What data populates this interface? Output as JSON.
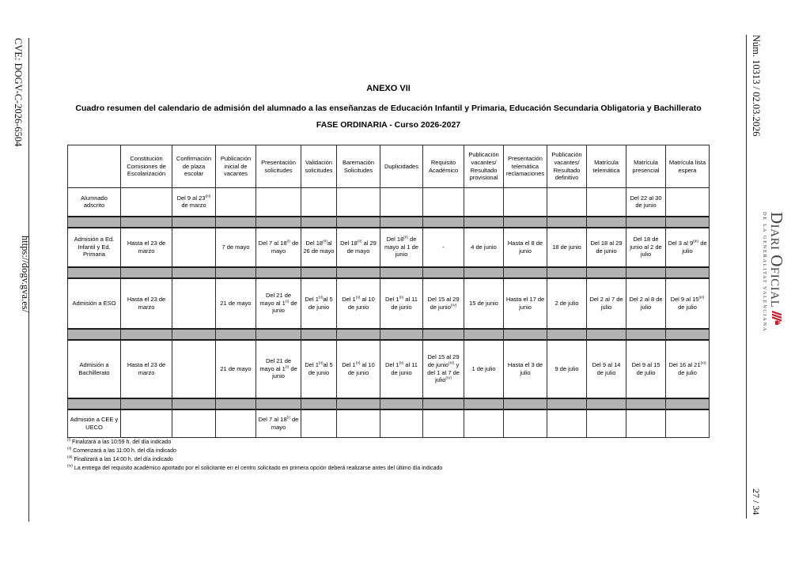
{
  "colors": {
    "logo_red": "#c41e2f",
    "spacer_gray": "#b3b3b3",
    "rule": "#2a2a2a"
  },
  "left_sidebar": {
    "cve": "CVE: DOGV-C-2026-6504",
    "url": "https://dogv.gva.es/"
  },
  "right_sidebar": {
    "issue": "Núm. 10313 / 02.03.2026",
    "logo_title": "Diari Oficial",
    "logo_subtitle": "DE LA GENERALITAT VALENCIANA",
    "page_number": "27 / 34"
  },
  "header": {
    "annex": "ANEXO VII",
    "subtitle": "Cuadro resumen del calendario de admisión del alumnado a las enseñanzas de Educación Infantil y Primaria, Educación Secundaria Obligatoria y Bachillerato",
    "phase": "FASE ORDINARIA - Curso 2026-2027"
  },
  "table": {
    "columns": [
      "",
      "Constitución Comisiones de Escolarización",
      "Confirmación de plaza escolar",
      "Publicación inicial de vacantes",
      "Presentación solicitudes",
      "Validación solicitudes",
      "Baremación Solicitudes",
      "Duplicidades",
      "Requisito Académico",
      "Publicación vacantes/ Resultado provisional",
      "Presentación telemática reclamaciones",
      "Publicación vacantes/ Resultado definitivo",
      "Matrícula telemática",
      "Matrícula presencial",
      "Matrícula lista espera"
    ],
    "rows": [
      {
        "label": "Alumnado adscrito",
        "cells": [
          "",
          "Del 9 al 23^(III) de marzo",
          "",
          "",
          "",
          "",
          "",
          "",
          "",
          "",
          "",
          "",
          "Del 22 al 30 de junio",
          ""
        ]
      },
      {
        "spacer": true
      },
      {
        "label": "Admisión a Ed. Infantil y Ed. Primaria",
        "cells": [
          "Hasta el 23 de marzo",
          "",
          "7 de mayo",
          "Del 7 al 18^(I) de mayo",
          "Del 18^(II)al 26 de mayo",
          "Del 18^(II) al 29 de mayo",
          "Del 18^(II) de mayo al 1 de junio",
          "-",
          "4 de junio",
          "Hasta el 8 de junio",
          "18 de junio",
          "Del 18 al 29 de junio",
          "Del 18 de junio al 2 de julio",
          "Del 3 al 9^(III) de julio"
        ]
      },
      {
        "spacer": true
      },
      {
        "label": "Admisión a ESO",
        "cells": [
          "Hasta el 23 de marzo",
          "",
          "21 de mayo",
          "Del 21 de mayo al 1^(I) de junio",
          "Del 1^(II)al 5 de junio",
          "Del 1^(II) al 10 de junio",
          "Del 1^(II) al 11 de junio",
          "Del 15 al 29 de junio^(IV)",
          "15 de junio",
          "Hasta el 17 de junio",
          "2 de julio",
          "Del 2 al 7 de julio",
          "Del 2 al 8 de julio",
          "Del 9 al 15^(III) de julio"
        ]
      },
      {
        "spacer": true
      },
      {
        "label": "Admisión a Bachillerato",
        "cells": [
          "Hasta el 23 de marzo",
          "",
          "21 de mayo",
          "Del 21 de mayo al 1^(I) de junio",
          "Del 1^(II)al 5 de junio",
          "Del 1^(II) al 10 de junio",
          "Del 1^(II) al 11 de junio",
          "Del 15 al 29 de junio^(IV) y del 1 al 7 de julio^(IV)",
          "1 de julio",
          "Hasta el 3 de julio",
          "9 de julio",
          "Del 9 al 14 de julio",
          "Del 9 al 15 de julio",
          "Del 16 al 21^(III) de julio"
        ]
      },
      {
        "spacer": true
      },
      {
        "label": "Admisión a CEE y UECO",
        "cells": [
          "",
          "",
          "",
          "Del 7 al 18^(I) de mayo",
          "",
          "",
          "",
          "",
          "",
          "",
          "",
          "",
          "",
          ""
        ]
      }
    ]
  },
  "footnotes": [
    "^(I) Finalizará a las 10:59 h. del día indicado",
    "^(II) Comenzará a las 11:00 h. del día indicado",
    "^(III) Finalizará a las 14:00 h. del día indicado",
    "^(IV) La entrega del requisito académico aportado por el solicitante en el centro solicitado en primera opción deberá realizarse antes del último día indicado"
  ]
}
